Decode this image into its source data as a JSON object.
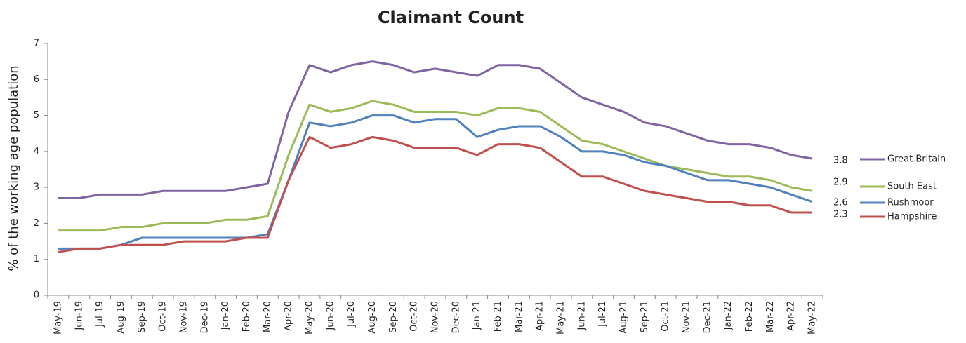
{
  "chart_data": {
    "type": "line",
    "title": "Claimant Count",
    "y_label": "% of the working age population",
    "categories": [
      "May-19",
      "Jun-19",
      "Jul-19",
      "Aug-19",
      "Sep-19",
      "Oct-19",
      "Nov-19",
      "Dec-19",
      "Jan-20",
      "Feb-20",
      "Mar-20",
      "Apr-20",
      "May-20",
      "Jun-20",
      "Jul-20",
      "Aug-20",
      "Sep-20",
      "Oct-20",
      "Nov-20",
      "Dec-20",
      "Jan-21",
      "Feb-21",
      "Mar-21",
      "Apr-21",
      "May-21",
      "Jun-21",
      "Jul-21",
      "Aug-21",
      "Sep-21",
      "Oct-21",
      "Nov-21",
      "Dec-21",
      "Jan-22",
      "Feb-22",
      "Mar-22",
      "Apr-22",
      "May-22"
    ],
    "series": [
      {
        "name": "Great Britain",
        "color": "#8064a2",
        "values": [
          2.7,
          2.7,
          2.8,
          2.8,
          2.8,
          2.9,
          2.9,
          2.9,
          2.9,
          3.0,
          3.1,
          5.1,
          6.4,
          6.2,
          6.4,
          6.5,
          6.4,
          6.2,
          6.3,
          6.2,
          6.1,
          6.4,
          6.4,
          6.3,
          5.9,
          5.5,
          5.3,
          5.1,
          4.8,
          4.7,
          4.5,
          4.3,
          4.2,
          4.2,
          4.1,
          3.9,
          3.8
        ]
      },
      {
        "name": "South East",
        "color": "#9bbb59",
        "values": [
          1.8,
          1.8,
          1.8,
          1.9,
          1.9,
          2.0,
          2.0,
          2.0,
          2.1,
          2.1,
          2.2,
          3.9,
          5.3,
          5.1,
          5.2,
          5.4,
          5.3,
          5.1,
          5.1,
          5.1,
          5.0,
          5.2,
          5.2,
          5.1,
          4.7,
          4.3,
          4.2,
          4.0,
          3.8,
          3.6,
          3.5,
          3.4,
          3.3,
          3.3,
          3.2,
          3.0,
          2.9
        ]
      },
      {
        "name": "Rushmoor",
        "color": "#4f81bd",
        "values": [
          1.3,
          1.3,
          1.3,
          1.4,
          1.6,
          1.6,
          1.6,
          1.6,
          1.6,
          1.6,
          1.7,
          3.2,
          4.8,
          4.7,
          4.8,
          5.0,
          5.0,
          4.8,
          4.9,
          4.9,
          4.4,
          4.6,
          4.7,
          4.7,
          4.4,
          4.0,
          4.0,
          3.9,
          3.7,
          3.6,
          3.4,
          3.2,
          3.2,
          3.1,
          3.0,
          2.8,
          2.6
        ]
      },
      {
        "name": "Hampshire",
        "color": "#c0504d",
        "values": [
          1.2,
          1.3,
          1.3,
          1.4,
          1.4,
          1.4,
          1.5,
          1.5,
          1.5,
          1.6,
          1.6,
          3.2,
          4.4,
          4.1,
          4.2,
          4.4,
          4.3,
          4.1,
          4.1,
          4.1,
          3.9,
          4.2,
          4.2,
          4.1,
          3.7,
          3.3,
          3.3,
          3.1,
          2.9,
          2.8,
          2.7,
          2.6,
          2.6,
          2.5,
          2.5,
          2.3,
          2.3
        ]
      }
    ],
    "ylim": [
      0,
      7
    ],
    "yticks": [
      0,
      1,
      2,
      3,
      4,
      5,
      6,
      7
    ],
    "grid": false
  }
}
